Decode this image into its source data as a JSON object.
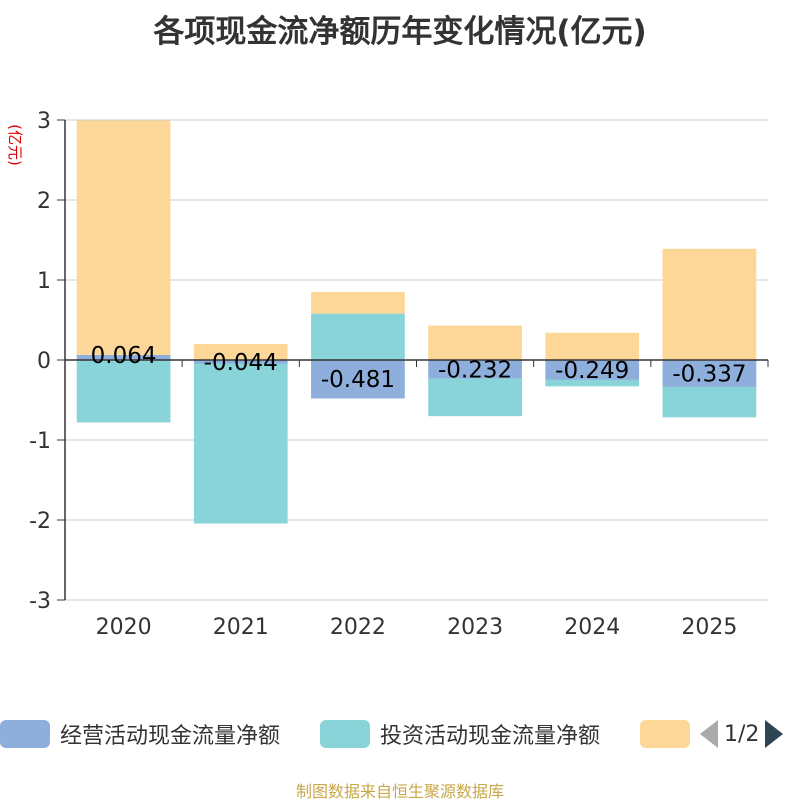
{
  "chart_data": {
    "type": "bar",
    "stacked": true,
    "title": "各项现金流净额历年变化情况(亿元)",
    "ylabel": "(亿元)",
    "xlabel": "",
    "ylim": [
      -3,
      3
    ],
    "yticks": [
      -3,
      -2,
      -1,
      0,
      1,
      2,
      3
    ],
    "categories": [
      "2020",
      "2021",
      "2022",
      "2023",
      "2024",
      "2025"
    ],
    "series": [
      {
        "name": "经营活动现金流量净额",
        "color": "#8eaedc",
        "values": [
          0.064,
          -0.044,
          -0.481,
          -0.232,
          -0.249,
          -0.337
        ],
        "labels": [
          "0.064",
          "-0.044",
          "-0.481",
          "-0.232",
          "-0.249",
          "-0.337"
        ]
      },
      {
        "name": "投资活动现金流量净额",
        "color": "#88d4d8",
        "values": [
          -0.78,
          -2.0,
          0.58,
          -0.47,
          -0.08,
          -0.38
        ]
      },
      {
        "name": "",
        "color": "#fdd797",
        "values": [
          2.93,
          0.2,
          0.27,
          0.43,
          0.34,
          1.39
        ]
      }
    ],
    "legend_position": "bottom"
  },
  "pager": {
    "text": "1/2"
  },
  "source": "制图数据来自恒生聚源数据库"
}
